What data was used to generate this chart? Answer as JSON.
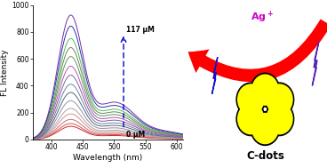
{
  "xlim": [
    370,
    610
  ],
  "ylim": [
    0,
    1000
  ],
  "xlabel": "Wavelength (nm)",
  "ylabel": "FL Intensity",
  "xticks": [
    400,
    450,
    500,
    550,
    600
  ],
  "yticks": [
    0,
    200,
    400,
    600,
    800,
    1000
  ],
  "annotation_top": "117 μM",
  "annotation_bot": "0 μM",
  "ag_label": "Ag$^+$",
  "cdots_label": "C-dots",
  "bg_color": "#ffffff",
  "curve_colors": [
    "#b03030",
    "#d04040",
    "#c06060",
    "#d08080",
    "#a08080",
    "#b0a0a0",
    "#606080",
    "#8090b0",
    "#8060a0",
    "#a040a0",
    "#408040",
    "#608060",
    "#40a040",
    "#3030a0",
    "#6030a0"
  ],
  "curve_peaks": [
    95,
    115,
    145,
    185,
    225,
    280,
    340,
    400,
    465,
    530,
    600,
    665,
    730,
    820,
    900
  ]
}
